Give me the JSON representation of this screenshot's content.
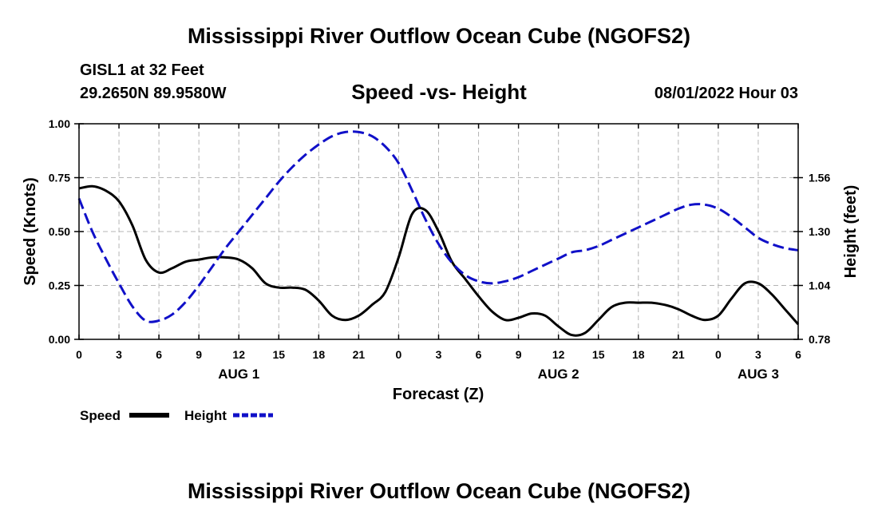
{
  "header": {
    "main_title": "Mississippi River Outflow Ocean Cube (NGOFS2)",
    "station_name": "GISL1 at 32 Feet",
    "coordinates": "29.2650N   89.9580W",
    "chart_title": "Speed -vs- Height",
    "datetime": "08/01/2022 Hour 03"
  },
  "footer": {
    "repeat_title": "Mississippi River Outflow Ocean Cube (NGOFS2)"
  },
  "colors": {
    "speed": "#000000",
    "height": "#1010c8",
    "grid": "#b4b4b4"
  },
  "chart_data": {
    "type": "line",
    "title": "Speed -vs- Height",
    "xlabel": "Forecast (Z)",
    "ylabel": "Speed (Knots)",
    "y2label": "Height (feet)",
    "grid": true,
    "legend_position": "bottom-left",
    "x_range_hours": [
      0,
      54
    ],
    "ylim": [
      0,
      1.0
    ],
    "y2lim": [
      0.78,
      1.82
    ],
    "x_ticks": [
      0,
      3,
      6,
      9,
      12,
      15,
      18,
      21,
      24,
      27,
      30,
      33,
      36,
      39,
      42,
      45,
      48,
      51,
      54
    ],
    "x_tick_labels": [
      "0",
      "3",
      "6",
      "9",
      "12",
      "15",
      "18",
      "21",
      "0",
      "3",
      "6",
      "9",
      "12",
      "15",
      "18",
      "21",
      "0",
      "3",
      "6"
    ],
    "y_ticks": [
      0,
      0.25,
      0.5,
      0.75,
      1.0
    ],
    "y_tick_labels": [
      "0.00",
      "0.25",
      "0.50",
      "0.75",
      "1.00"
    ],
    "y2_ticks": [
      0.78,
      1.04,
      1.3,
      1.56
    ],
    "y2_tick_labels": [
      "0.78",
      "1.04",
      "1.30",
      "1.56"
    ],
    "day_labels": [
      {
        "hour": 12,
        "label": "AUG 1"
      },
      {
        "hour": 36,
        "label": "AUG 2"
      },
      {
        "hour": 51,
        "label": "AUG 3"
      }
    ],
    "series": [
      {
        "name": "Speed",
        "axis": "left",
        "dash": false,
        "x": [
          0,
          1,
          2,
          3,
          4,
          5,
          6,
          7,
          8,
          9,
          10,
          11,
          12,
          13,
          14,
          15,
          16,
          17,
          18,
          19,
          20,
          21,
          22,
          23,
          24,
          25,
          26,
          27,
          28,
          29,
          30,
          31,
          32,
          33,
          34,
          35,
          36,
          37,
          38,
          39,
          40,
          41,
          42,
          43,
          44,
          45,
          46,
          47,
          48,
          49,
          50,
          51,
          52,
          53,
          54
        ],
        "values": [
          0.7,
          0.71,
          0.69,
          0.64,
          0.53,
          0.37,
          0.31,
          0.33,
          0.36,
          0.37,
          0.38,
          0.38,
          0.37,
          0.33,
          0.26,
          0.24,
          0.24,
          0.23,
          0.18,
          0.11,
          0.09,
          0.11,
          0.16,
          0.22,
          0.38,
          0.58,
          0.6,
          0.5,
          0.36,
          0.28,
          0.2,
          0.13,
          0.09,
          0.1,
          0.12,
          0.11,
          0.06,
          0.02,
          0.03,
          0.09,
          0.15,
          0.17,
          0.17,
          0.17,
          0.16,
          0.14,
          0.11,
          0.09,
          0.11,
          0.19,
          0.26,
          0.26,
          0.21,
          0.14,
          0.07
        ]
      },
      {
        "name": "Height",
        "axis": "right",
        "dash": true,
        "x": [
          0,
          1,
          2,
          3,
          4,
          5,
          6,
          7,
          8,
          9,
          10,
          11,
          12,
          13,
          14,
          15,
          16,
          17,
          18,
          19,
          20,
          21,
          22,
          23,
          24,
          25,
          26,
          27,
          28,
          29,
          30,
          31,
          32,
          33,
          34,
          35,
          36,
          37,
          38,
          39,
          40,
          41,
          42,
          43,
          44,
          45,
          46,
          47,
          48,
          49,
          50,
          51,
          52,
          53,
          54
        ],
        "values": [
          1.46,
          1.3,
          1.17,
          1.05,
          0.94,
          0.87,
          0.87,
          0.9,
          0.96,
          1.04,
          1.13,
          1.22,
          1.3,
          1.38,
          1.46,
          1.54,
          1.61,
          1.67,
          1.72,
          1.76,
          1.78,
          1.78,
          1.76,
          1.71,
          1.63,
          1.5,
          1.36,
          1.24,
          1.15,
          1.09,
          1.06,
          1.05,
          1.06,
          1.08,
          1.11,
          1.14,
          1.17,
          1.2,
          1.21,
          1.23,
          1.26,
          1.29,
          1.32,
          1.35,
          1.38,
          1.41,
          1.43,
          1.43,
          1.41,
          1.37,
          1.32,
          1.27,
          1.24,
          1.22,
          1.21
        ]
      }
    ]
  }
}
